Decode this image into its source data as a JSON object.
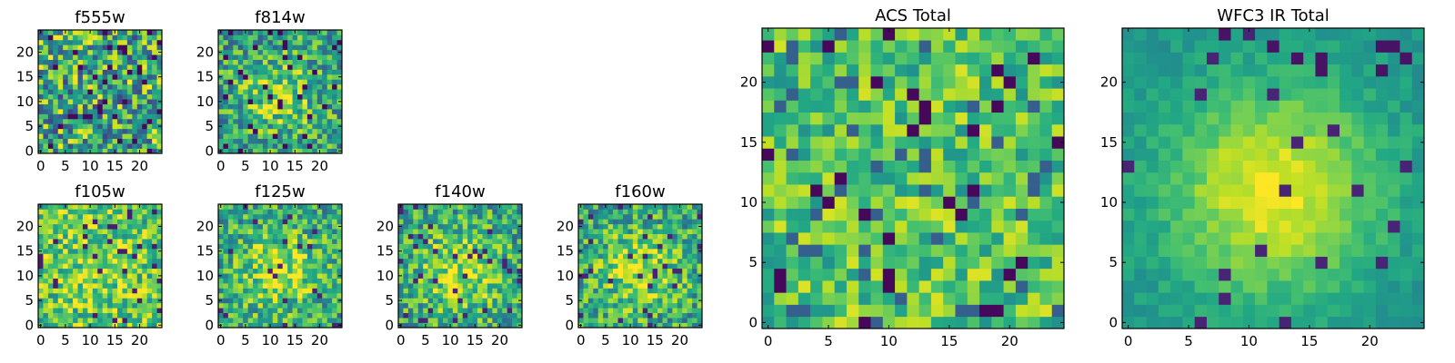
{
  "chart_data": [
    {
      "id": "f555w",
      "type": "heatmap",
      "title": "f555w",
      "grid_size": 25,
      "xticks": [
        0,
        5,
        10,
        15,
        20
      ],
      "yticks": [
        0,
        5,
        10,
        15,
        20
      ],
      "xlim": [
        -0.5,
        24.5
      ],
      "ylim": [
        -0.5,
        24.5
      ],
      "colormap": "viridis",
      "pattern": "uniform-noise",
      "seed": 11
    },
    {
      "id": "f814w",
      "type": "heatmap",
      "title": "f814w",
      "grid_size": 25,
      "xticks": [
        0,
        5,
        10,
        15,
        20
      ],
      "yticks": [
        0,
        5,
        10,
        15,
        20
      ],
      "xlim": [
        -0.5,
        24.5
      ],
      "ylim": [
        -0.5,
        24.5
      ],
      "colormap": "viridis",
      "pattern": "noise-with-faint-central-peak",
      "seed": 23
    },
    {
      "id": "f105w",
      "type": "heatmap",
      "title": "f105w",
      "grid_size": 25,
      "xticks": [
        0,
        5,
        10,
        15,
        20
      ],
      "yticks": [
        0,
        5,
        10,
        15,
        20
      ],
      "xlim": [
        -0.5,
        24.5
      ],
      "ylim": [
        -0.5,
        24.5
      ],
      "colormap": "viridis",
      "pattern": "noise-bright",
      "seed": 37
    },
    {
      "id": "f125w",
      "type": "heatmap",
      "title": "f125w",
      "grid_size": 25,
      "xticks": [
        0,
        5,
        10,
        15,
        20
      ],
      "yticks": [
        0,
        5,
        10,
        15,
        20
      ],
      "xlim": [
        -0.5,
        24.5
      ],
      "ylim": [
        -0.5,
        24.5
      ],
      "colormap": "viridis",
      "pattern": "noise-with-central-peak",
      "seed": 41
    },
    {
      "id": "f140w",
      "type": "heatmap",
      "title": "f140w",
      "grid_size": 25,
      "xticks": [
        0,
        5,
        10,
        15,
        20
      ],
      "yticks": [
        0,
        5,
        10,
        15,
        20
      ],
      "xlim": [
        -0.5,
        24.5
      ],
      "ylim": [
        -0.5,
        24.5
      ],
      "colormap": "viridis",
      "pattern": "noise-with-central-peak",
      "seed": 53
    },
    {
      "id": "f160w",
      "type": "heatmap",
      "title": "f160w",
      "grid_size": 25,
      "xticks": [
        0,
        5,
        10,
        15,
        20
      ],
      "yticks": [
        0,
        5,
        10,
        15,
        20
      ],
      "xlim": [
        -0.5,
        24.5
      ],
      "ylim": [
        -0.5,
        24.5
      ],
      "colormap": "viridis",
      "pattern": "noise-with-central-peak",
      "seed": 67
    },
    {
      "id": "acs-total",
      "type": "heatmap",
      "title": "ACS Total",
      "grid_size": 25,
      "xticks": [
        0,
        5,
        10,
        15,
        20
      ],
      "yticks": [
        0,
        5,
        10,
        15,
        20
      ],
      "xlim": [
        -0.5,
        24.5
      ],
      "ylim": [
        -0.5,
        24.5
      ],
      "colormap": "viridis",
      "pattern": "noise-mostly-green",
      "seed": 79
    },
    {
      "id": "wfc3-ir-total",
      "type": "heatmap",
      "title": "WFC3 IR Total",
      "grid_size": 25,
      "xticks": [
        0,
        5,
        10,
        15,
        20
      ],
      "yticks": [
        0,
        5,
        10,
        15,
        20
      ],
      "xlim": [
        -0.5,
        24.5
      ],
      "ylim": [
        -0.5,
        24.5
      ],
      "colormap": "viridis",
      "pattern": "smooth-central-source",
      "seed": 97
    }
  ]
}
